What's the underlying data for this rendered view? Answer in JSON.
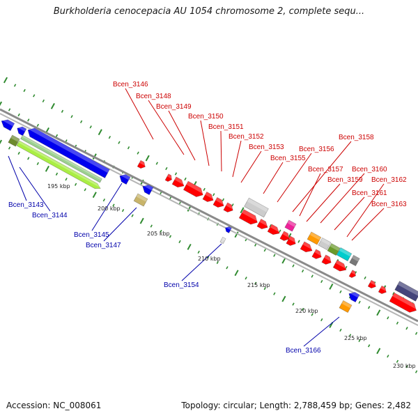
{
  "header": {
    "title": "Burkholderia cenocepacia AU 1054 chromosome 2, complete sequ..."
  },
  "footer": {
    "accession": "Accession: NC_008061",
    "topology": "Topology: circular; Length: 2,788,459 bp; Genes: 2,482"
  },
  "colors": {
    "backbone": "#8a8a8a",
    "tick": "#2f8a2f",
    "forward_label": "#cc0000",
    "reverse_label": "#0000aa"
  },
  "scale_ticks": [
    "195 kbp",
    "200 kbp",
    "205 kbp",
    "210 kbp",
    "215 kbp",
    "220 kbp",
    "225 kbp",
    "230 kbp"
  ],
  "genes_forward": [
    "Bcen_3146",
    "Bcen_3148",
    "Bcen_3149",
    "Bcen_3150",
    "Bcen_3151",
    "Bcen_3152",
    "Bcen_3153",
    "Bcen_3155",
    "Bcen_3156",
    "Bcen_3158",
    "Bcen_3157",
    "Bcen_3159",
    "Bcen_3160",
    "Bcen_3162",
    "Bcen_3161",
    "Bcen_3163"
  ],
  "genes_reverse": [
    "Bcen_3143",
    "Bcen_3144",
    "Bcen_3145",
    "Bcen_3147",
    "Bcen_3154",
    "Bcen_3166"
  ]
}
